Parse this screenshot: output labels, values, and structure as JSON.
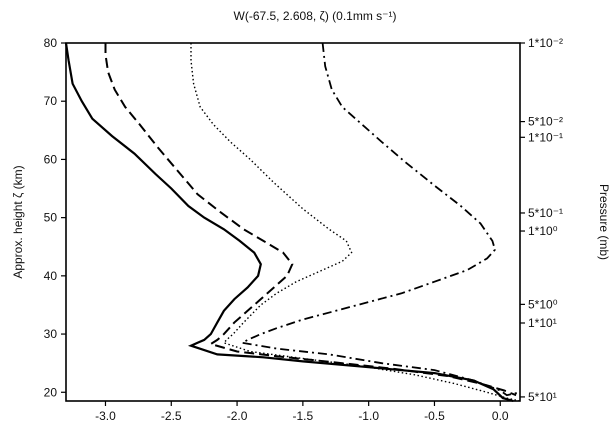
{
  "chart_data": {
    "type": "line",
    "title": "W(-67.5, 2.608, ζ) (0.1mm s⁻¹)",
    "xlabel": "",
    "ylabel": "Approx. height ζ (km)",
    "y2label": "Pressure (mb)",
    "xlim": [
      -3.3,
      0.15
    ],
    "ylim": [
      18.5,
      80
    ],
    "xticks": [
      -3.0,
      -2.5,
      -2.0,
      -1.5,
      -1.0,
      -0.5,
      0.0
    ],
    "xtick_labels": [
      "-3.0",
      "-2.5",
      "-2.0",
      "-1.5",
      "-1.0",
      "-0.5",
      "0.0"
    ],
    "yticks": [
      20,
      30,
      40,
      50,
      60,
      70,
      80
    ],
    "ytick_labels": [
      "20",
      "30",
      "40",
      "50",
      "60",
      "70",
      "80"
    ],
    "y2ticks": [
      {
        "height": 80.0,
        "label": "1*10⁻²"
      },
      {
        "height": 66.5,
        "label": "5*10⁻²"
      },
      {
        "height": 63.8,
        "label": "1*10⁻¹"
      },
      {
        "height": 50.8,
        "label": "5*10⁻¹"
      },
      {
        "height": 47.7,
        "label": "1*10⁰"
      },
      {
        "height": 35.1,
        "label": "5*10⁰"
      },
      {
        "height": 31.9,
        "label": "1*10¹"
      },
      {
        "height": 19.2,
        "label": "5*10¹"
      }
    ],
    "series": [
      {
        "style": "solid",
        "points": [
          [
            -3.3,
            80
          ],
          [
            -3.28,
            77
          ],
          [
            -3.25,
            73
          ],
          [
            -3.18,
            70
          ],
          [
            -3.1,
            67
          ],
          [
            -2.95,
            64
          ],
          [
            -2.78,
            61
          ],
          [
            -2.62,
            57.5
          ],
          [
            -2.5,
            55
          ],
          [
            -2.37,
            52
          ],
          [
            -2.25,
            50
          ],
          [
            -2.1,
            48
          ],
          [
            -1.98,
            46
          ],
          [
            -1.87,
            44
          ],
          [
            -1.82,
            42
          ],
          [
            -1.84,
            40
          ],
          [
            -1.92,
            38
          ],
          [
            -2.02,
            36
          ],
          [
            -2.1,
            34
          ],
          [
            -2.15,
            32
          ],
          [
            -2.2,
            30
          ],
          [
            -2.25,
            29
          ],
          [
            -2.3,
            28.5
          ],
          [
            -2.35,
            28
          ],
          [
            -2.15,
            26.5
          ],
          [
            -1.8,
            26
          ],
          [
            -1.5,
            25.3
          ],
          [
            -1.0,
            24.3
          ],
          [
            -0.5,
            23.3
          ],
          [
            -0.2,
            22
          ],
          [
            -0.05,
            20.5
          ],
          [
            0.02,
            19
          ],
          [
            0.1,
            18.5
          ]
        ]
      },
      {
        "style": "dashed",
        "points": [
          [
            -3.0,
            80
          ],
          [
            -3.0,
            78
          ],
          [
            -2.98,
            75
          ],
          [
            -2.93,
            72
          ],
          [
            -2.85,
            69
          ],
          [
            -2.74,
            66
          ],
          [
            -2.6,
            62
          ],
          [
            -2.45,
            58
          ],
          [
            -2.3,
            54
          ],
          [
            -2.13,
            51
          ],
          [
            -1.95,
            48
          ],
          [
            -1.8,
            46
          ],
          [
            -1.65,
            44
          ],
          [
            -1.58,
            42
          ],
          [
            -1.62,
            40
          ],
          [
            -1.72,
            38
          ],
          [
            -1.82,
            36
          ],
          [
            -1.92,
            34
          ],
          [
            -2.02,
            32
          ],
          [
            -2.1,
            30
          ],
          [
            -2.15,
            29
          ],
          [
            -2.2,
            28.3
          ],
          [
            -2.0,
            27
          ],
          [
            -1.7,
            26.2
          ],
          [
            -1.2,
            25
          ],
          [
            -0.8,
            24
          ],
          [
            -0.4,
            22.8
          ],
          [
            -0.15,
            21.5
          ],
          [
            0.03,
            20.3
          ],
          [
            0.12,
            19.5
          ]
        ]
      },
      {
        "style": "dotted",
        "points": [
          [
            -2.35,
            80
          ],
          [
            -2.35,
            77
          ],
          [
            -2.33,
            73
          ],
          [
            -2.28,
            69
          ],
          [
            -2.18,
            66
          ],
          [
            -2.05,
            63
          ],
          [
            -1.9,
            60
          ],
          [
            -1.72,
            56
          ],
          [
            -1.5,
            51.5
          ],
          [
            -1.3,
            48
          ],
          [
            -1.17,
            46
          ],
          [
            -1.13,
            44
          ],
          [
            -1.2,
            42.5
          ],
          [
            -1.35,
            41
          ],
          [
            -1.55,
            39
          ],
          [
            -1.7,
            37
          ],
          [
            -1.82,
            35
          ],
          [
            -1.95,
            32
          ],
          [
            -2.03,
            30
          ],
          [
            -2.08,
            29
          ],
          [
            -2.1,
            28.5
          ],
          [
            -1.9,
            27
          ],
          [
            -1.5,
            25.8
          ],
          [
            -1.05,
            24.5
          ],
          [
            -0.65,
            23
          ],
          [
            -0.35,
            21.5
          ],
          [
            -0.1,
            20
          ],
          [
            0.05,
            19
          ],
          [
            0.15,
            18.5
          ]
        ]
      },
      {
        "style": "dashdot",
        "points": [
          [
            -1.35,
            80
          ],
          [
            -1.33,
            76
          ],
          [
            -1.28,
            72
          ],
          [
            -1.2,
            69
          ],
          [
            -1.05,
            66
          ],
          [
            -0.9,
            63
          ],
          [
            -0.72,
            59.5
          ],
          [
            -0.5,
            55.5
          ],
          [
            -0.3,
            52
          ],
          [
            -0.15,
            49
          ],
          [
            -0.06,
            46
          ],
          [
            -0.04,
            44.5
          ],
          [
            -0.1,
            43
          ],
          [
            -0.25,
            41
          ],
          [
            -0.5,
            39
          ],
          [
            -0.75,
            37
          ],
          [
            -1.0,
            35.5
          ],
          [
            -1.25,
            34
          ],
          [
            -1.5,
            32.5
          ],
          [
            -1.7,
            31
          ],
          [
            -1.82,
            30
          ],
          [
            -1.92,
            29
          ],
          [
            -1.96,
            28.5
          ],
          [
            -1.7,
            27.5
          ],
          [
            -1.3,
            26.5
          ],
          [
            -0.9,
            25
          ],
          [
            -0.5,
            23.8
          ],
          [
            -0.2,
            22
          ],
          [
            0.0,
            20.3
          ],
          [
            0.05,
            19.5
          ],
          [
            0.15,
            20
          ]
        ]
      }
    ]
  }
}
